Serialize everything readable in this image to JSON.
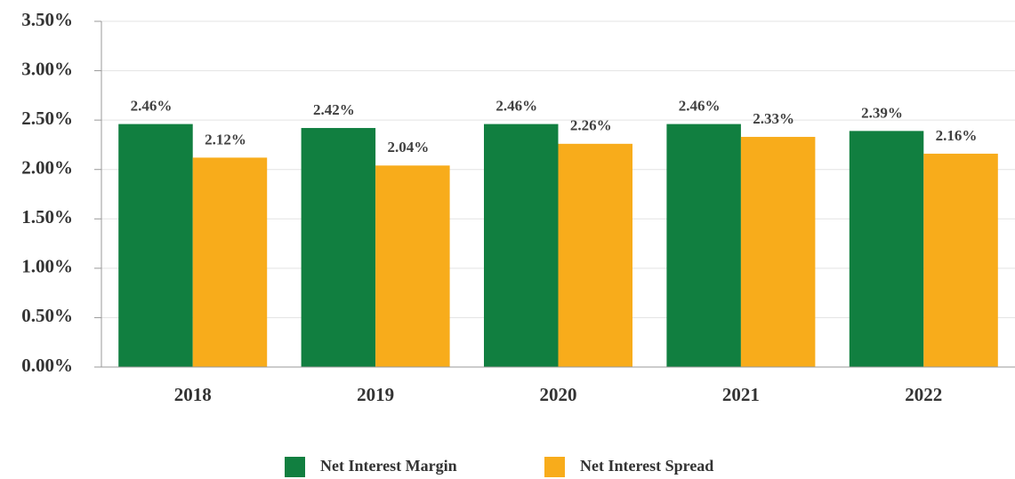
{
  "chart_data": {
    "type": "bar",
    "categories": [
      "2018",
      "2019",
      "2020",
      "2021",
      "2022"
    ],
    "series": [
      {
        "name": "Net Interest Margin",
        "color": "#117f40",
        "values": [
          2.46,
          2.42,
          2.46,
          2.46,
          2.39
        ],
        "value_labels": [
          "2.46%",
          "2.42%",
          "2.46%",
          "2.46%",
          "2.39%"
        ]
      },
      {
        "name": "Net Interest Spread",
        "color": "#f8ac1b",
        "values": [
          2.12,
          2.04,
          2.26,
          2.33,
          2.16
        ],
        "value_labels": [
          "2.12%",
          "2.04%",
          "2.26%",
          "2.33%",
          "2.16%"
        ]
      }
    ],
    "ylim": [
      0,
      3.5
    ],
    "yticks": [
      {
        "value": 0,
        "label": "0.00%"
      },
      {
        "value": 0.5,
        "label": "0.50%"
      },
      {
        "value": 1,
        "label": "1.00%"
      },
      {
        "value": 1.5,
        "label": "1.50%"
      },
      {
        "value": 2,
        "label": "2.00%"
      },
      {
        "value": 2.5,
        "label": "2.50%"
      },
      {
        "value": 3,
        "label": "3.00%"
      },
      {
        "value": 3.5,
        "label": "3.50%"
      }
    ],
    "grid": true,
    "legend": "bottom"
  }
}
